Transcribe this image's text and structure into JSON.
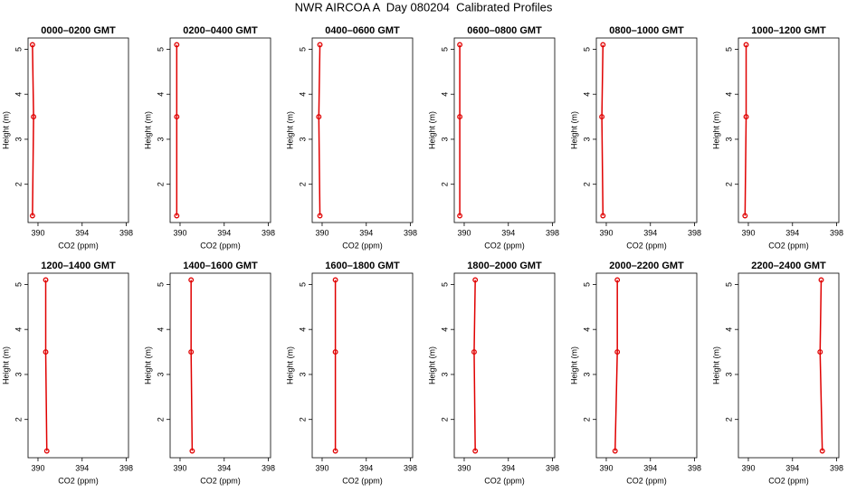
{
  "title": "NWR AIRCOA A  Day 080204  Calibrated Profiles",
  "chart_data": [
    {
      "type": "line",
      "title": "0000–0200 GMT",
      "xlabel": "CO2 (ppm)",
      "ylabel": "Height (m)",
      "color": "#e00000",
      "y": [
        1.3,
        3.5,
        5.1
      ],
      "values": [
        389.5,
        389.6,
        389.5
      ],
      "xlim": [
        389.1,
        398.2
      ],
      "ylim": [
        1.15,
        5.25
      ],
      "xticks": [
        390,
        394,
        398
      ],
      "yticks": [
        2,
        3,
        4,
        5
      ]
    },
    {
      "type": "line",
      "title": "0200–0400 GMT",
      "xlabel": "CO2 (ppm)",
      "ylabel": "Height (m)",
      "color": "#e00000",
      "y": [
        1.3,
        3.5,
        5.1
      ],
      "values": [
        389.7,
        389.7,
        389.7
      ],
      "xlim": [
        389.1,
        398.2
      ],
      "ylim": [
        1.15,
        5.25
      ],
      "xticks": [
        390,
        394,
        398
      ],
      "yticks": [
        2,
        3,
        4,
        5
      ]
    },
    {
      "type": "line",
      "title": "0400–0600 GMT",
      "xlabel": "CO2 (ppm)",
      "ylabel": "Height (m)",
      "color": "#e00000",
      "y": [
        1.3,
        3.5,
        5.1
      ],
      "values": [
        389.8,
        389.7,
        389.8
      ],
      "xlim": [
        389.1,
        398.2
      ],
      "ylim": [
        1.15,
        5.25
      ],
      "xticks": [
        390,
        394,
        398
      ],
      "yticks": [
        2,
        3,
        4,
        5
      ]
    },
    {
      "type": "line",
      "title": "0600–0800 GMT",
      "xlabel": "CO2 (ppm)",
      "ylabel": "Height (m)",
      "color": "#e00000",
      "y": [
        1.3,
        3.5,
        5.1
      ],
      "values": [
        389.6,
        389.6,
        389.6
      ],
      "xlim": [
        389.1,
        398.2
      ],
      "ylim": [
        1.15,
        5.25
      ],
      "xticks": [
        390,
        394,
        398
      ],
      "yticks": [
        2,
        3,
        4,
        5
      ]
    },
    {
      "type": "line",
      "title": "0800–1000 GMT",
      "xlabel": "CO2 (ppm)",
      "ylabel": "Height (m)",
      "color": "#e00000",
      "y": [
        1.3,
        3.5,
        5.1
      ],
      "values": [
        389.7,
        389.6,
        389.7
      ],
      "xlim": [
        389.1,
        398.2
      ],
      "ylim": [
        1.15,
        5.25
      ],
      "xticks": [
        390,
        394,
        398
      ],
      "yticks": [
        2,
        3,
        4,
        5
      ]
    },
    {
      "type": "line",
      "title": "1000–1200 GMT",
      "xlabel": "CO2 (ppm)",
      "ylabel": "Height (m)",
      "color": "#e00000",
      "y": [
        1.3,
        3.5,
        5.1
      ],
      "values": [
        389.7,
        389.8,
        389.8
      ],
      "xlim": [
        389.1,
        398.2
      ],
      "ylim": [
        1.15,
        5.25
      ],
      "xticks": [
        390,
        394,
        398
      ],
      "yticks": [
        2,
        3,
        4,
        5
      ]
    },
    {
      "type": "line",
      "title": "1200–1400 GMT",
      "xlabel": "CO2 (ppm)",
      "ylabel": "Height (m)",
      "color": "#e00000",
      "y": [
        1.3,
        3.5,
        5.1
      ],
      "values": [
        390.8,
        390.7,
        390.7
      ],
      "xlim": [
        389.1,
        398.2
      ],
      "ylim": [
        1.15,
        5.25
      ],
      "xticks": [
        390,
        394,
        398
      ],
      "yticks": [
        2,
        3,
        4,
        5
      ]
    },
    {
      "type": "line",
      "title": "1400–1600 GMT",
      "xlabel": "CO2 (ppm)",
      "ylabel": "Height (m)",
      "color": "#e00000",
      "y": [
        1.3,
        3.5,
        5.1
      ],
      "values": [
        391.1,
        391.0,
        391.0
      ],
      "xlim": [
        389.1,
        398.2
      ],
      "ylim": [
        1.15,
        5.25
      ],
      "xticks": [
        390,
        394,
        398
      ],
      "yticks": [
        2,
        3,
        4,
        5
      ]
    },
    {
      "type": "line",
      "title": "1600–1800 GMT",
      "xlabel": "CO2 (ppm)",
      "ylabel": "Height (m)",
      "color": "#e00000",
      "y": [
        1.3,
        3.5,
        5.1
      ],
      "values": [
        391.2,
        391.2,
        391.2
      ],
      "xlim": [
        389.1,
        398.2
      ],
      "ylim": [
        1.15,
        5.25
      ],
      "xticks": [
        390,
        394,
        398
      ],
      "yticks": [
        2,
        3,
        4,
        5
      ]
    },
    {
      "type": "line",
      "title": "1800–2000 GMT",
      "xlabel": "CO2 (ppm)",
      "ylabel": "Height (m)",
      "color": "#e00000",
      "y": [
        1.3,
        3.5,
        5.1
      ],
      "values": [
        391.0,
        390.9,
        391.0
      ],
      "xlim": [
        389.1,
        398.2
      ],
      "ylim": [
        1.15,
        5.25
      ],
      "xticks": [
        390,
        394,
        398
      ],
      "yticks": [
        2,
        3,
        4,
        5
      ]
    },
    {
      "type": "line",
      "title": "2000–2200 GMT",
      "xlabel": "CO2 (ppm)",
      "ylabel": "Height (m)",
      "color": "#e00000",
      "y": [
        1.3,
        3.5,
        5.1
      ],
      "values": [
        390.8,
        391.0,
        391.0
      ],
      "xlim": [
        389.1,
        398.2
      ],
      "ylim": [
        1.15,
        5.25
      ],
      "xticks": [
        390,
        394,
        398
      ],
      "yticks": [
        2,
        3,
        4,
        5
      ]
    },
    {
      "type": "line",
      "title": "2200–2400 GMT",
      "xlabel": "CO2 (ppm)",
      "ylabel": "Height (m)",
      "color": "#e00000",
      "y": [
        1.3,
        3.5,
        5.1
      ],
      "values": [
        396.7,
        396.5,
        396.6
      ],
      "xlim": [
        389.1,
        398.2
      ],
      "ylim": [
        1.15,
        5.25
      ],
      "xticks": [
        390,
        394,
        398
      ],
      "yticks": [
        2,
        3,
        4,
        5
      ]
    }
  ]
}
